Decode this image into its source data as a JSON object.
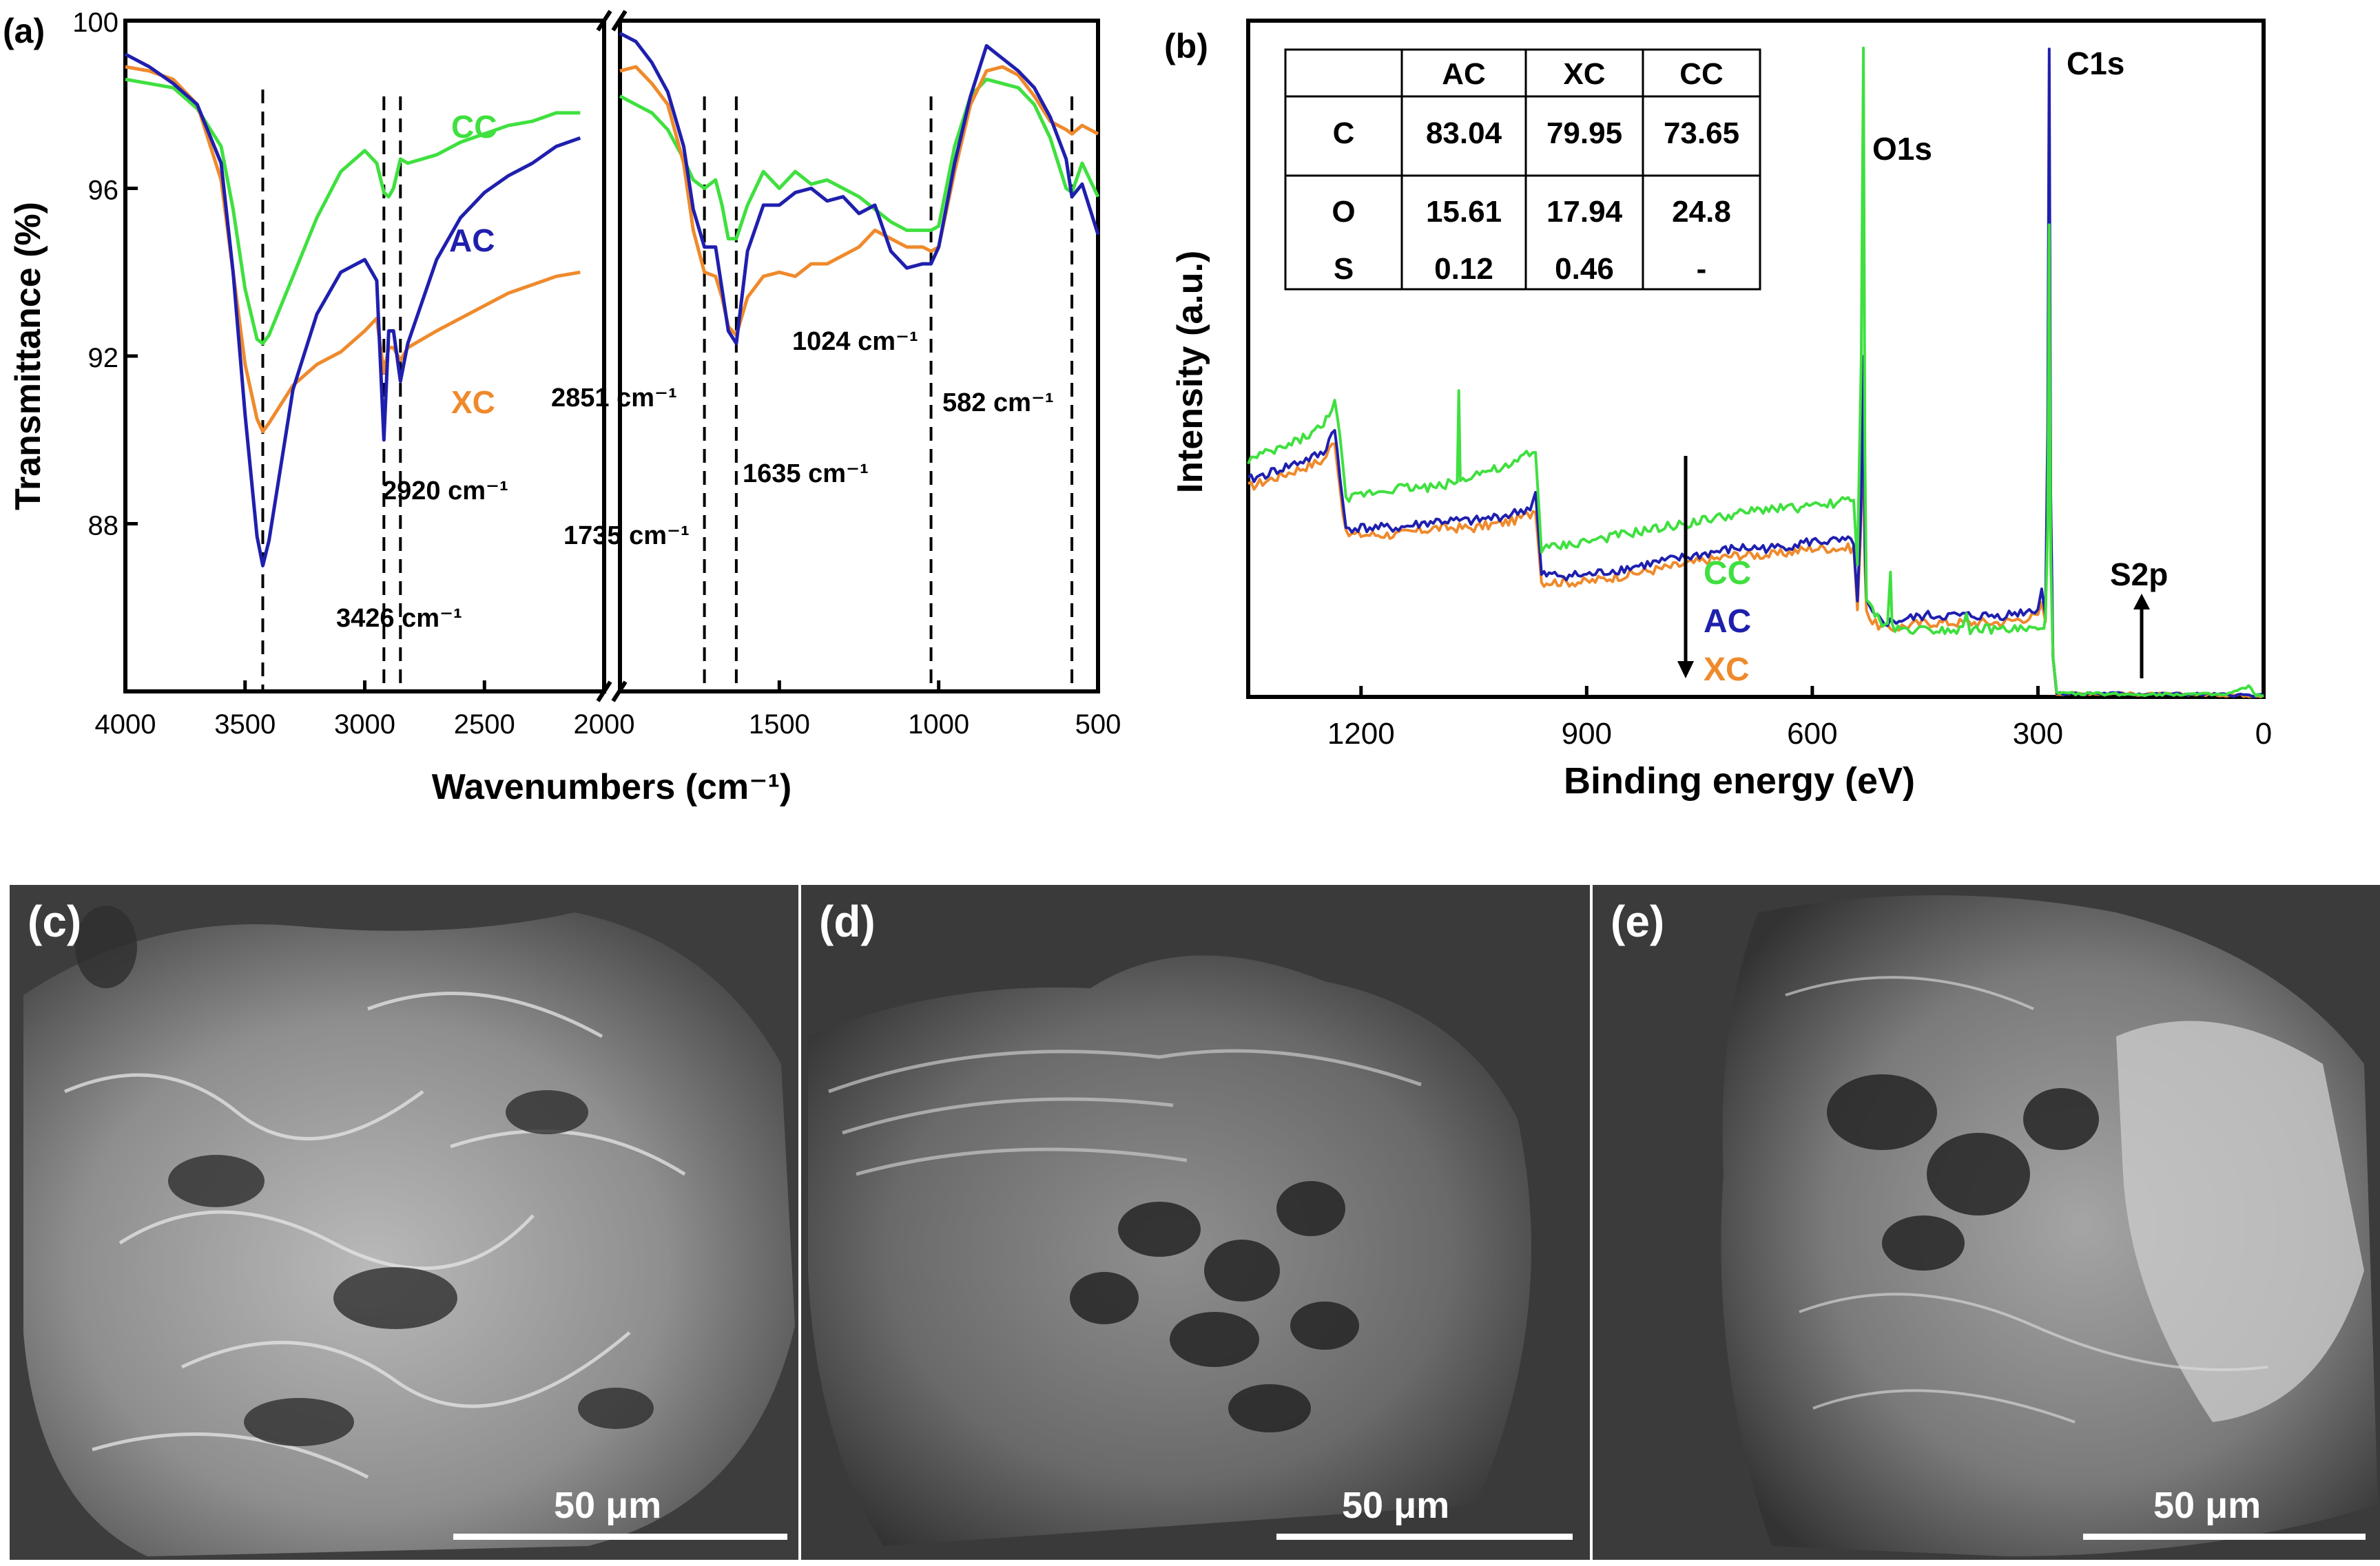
{
  "colors": {
    "AC": "#1f1fae",
    "XC": "#ef8a2c",
    "CC": "#3fe03f",
    "axis": "#000000"
  },
  "chart_data": [
    {
      "panel": "(a)",
      "type": "line",
      "xlabel": "Wavenumbers (cm⁻¹)",
      "ylabel": "Transmittance (%)",
      "ylim": [
        84,
        100
      ],
      "yticks": [
        "88",
        "92",
        "96",
        "100"
      ],
      "xbreak": true,
      "segment1": {
        "xlim": [
          4000,
          2000
        ],
        "xticks": [
          "4000",
          "3500",
          "3000",
          "2500",
          "2000"
        ]
      },
      "segment2": {
        "xlim": [
          2000,
          500
        ],
        "xticks": [
          "1500",
          "1000",
          "500"
        ]
      },
      "series": [
        {
          "name": "AC",
          "label": "AC",
          "seg1": {
            "x": [
              4000,
              3900,
              3800,
              3700,
              3600,
              3550,
              3500,
              3450,
              3426,
              3400,
              3300,
              3200,
              3100,
              3000,
              2950,
              2920,
              2900,
              2880,
              2851,
              2820,
              2700,
              2600,
              2500,
              2400,
              2300,
              2200,
              2100
            ],
            "y": [
              99.2,
              98.9,
              98.5,
              98.0,
              96.6,
              94.0,
              90.6,
              87.7,
              87.0,
              87.6,
              91.2,
              93.0,
              94.0,
              94.3,
              93.8,
              90.0,
              92.6,
              92.6,
              91.4,
              92.3,
              94.3,
              95.3,
              95.9,
              96.3,
              96.6,
              97.0,
              97.2
            ]
          },
          "seg2": {
            "x": [
              2000,
              1950,
              1900,
              1850,
              1800,
              1770,
              1735,
              1700,
              1680,
              1660,
              1635,
              1600,
              1550,
              1500,
              1450,
              1400,
              1350,
              1300,
              1250,
              1200,
              1150,
              1100,
              1050,
              1024,
              1000,
              950,
              900,
              850,
              800,
              750,
              700,
              650,
              600,
              582,
              550,
              500
            ],
            "y": [
              99.7,
              99.5,
              99.0,
              98.3,
              97.0,
              95.5,
              94.6,
              94.6,
              93.6,
              92.6,
              92.3,
              94.5,
              95.6,
              95.6,
              95.9,
              96.0,
              95.7,
              95.8,
              95.4,
              95.6,
              94.5,
              94.1,
              94.2,
              94.2,
              94.6,
              96.6,
              98.2,
              99.4,
              99.1,
              98.8,
              98.4,
              97.7,
              96.7,
              95.8,
              96.1,
              94.9
            ]
          }
        },
        {
          "name": "XC",
          "label": "XC",
          "seg1": {
            "x": [
              4000,
              3900,
              3800,
              3700,
              3600,
              3550,
              3500,
              3450,
              3426,
              3400,
              3300,
              3200,
              3100,
              3000,
              2950,
              2920,
              2900,
              2880,
              2851,
              2820,
              2700,
              2600,
              2500,
              2400,
              2300,
              2200,
              2100
            ],
            "y": [
              98.9,
              98.8,
              98.6,
              98.0,
              96.2,
              94.0,
              91.8,
              90.5,
              90.2,
              90.4,
              91.3,
              91.8,
              92.1,
              92.6,
              92.9,
              91.6,
              92.2,
              92.2,
              91.9,
              92.2,
              92.6,
              92.9,
              93.2,
              93.5,
              93.7,
              93.9,
              94.0
            ]
          },
          "seg2": {
            "x": [
              2000,
              1950,
              1900,
              1850,
              1800,
              1770,
              1735,
              1700,
              1680,
              1660,
              1635,
              1600,
              1550,
              1500,
              1450,
              1400,
              1350,
              1300,
              1250,
              1200,
              1150,
              1100,
              1050,
              1024,
              1000,
              950,
              900,
              850,
              800,
              750,
              700,
              650,
              600,
              582,
              550,
              500
            ],
            "y": [
              98.8,
              98.9,
              98.5,
              98.0,
              96.6,
              95.0,
              94.0,
              93.9,
              93.4,
              92.7,
              92.5,
              93.4,
              93.9,
              94.0,
              93.9,
              94.2,
              94.2,
              94.4,
              94.6,
              95.0,
              94.8,
              94.6,
              94.6,
              94.5,
              94.6,
              96.4,
              98.0,
              98.8,
              98.9,
              98.7,
              98.2,
              97.6,
              97.4,
              97.3,
              97.5,
              97.3
            ]
          }
        },
        {
          "name": "CC",
          "label": "CC",
          "seg1": {
            "x": [
              4000,
              3900,
              3800,
              3700,
              3600,
              3550,
              3500,
              3450,
              3426,
              3400,
              3300,
              3200,
              3100,
              3000,
              2950,
              2920,
              2900,
              2880,
              2851,
              2820,
              2700,
              2600,
              2500,
              2400,
              2300,
              2200,
              2100
            ],
            "y": [
              98.6,
              98.5,
              98.4,
              97.9,
              97.0,
              95.5,
              93.6,
              92.4,
              92.3,
              92.5,
              93.9,
              95.3,
              96.4,
              96.9,
              96.6,
              95.9,
              95.8,
              96.0,
              96.7,
              96.6,
              96.8,
              97.1,
              97.3,
              97.5,
              97.6,
              97.8,
              97.8
            ]
          },
          "seg2": {
            "x": [
              2000,
              1950,
              1900,
              1850,
              1800,
              1770,
              1735,
              1700,
              1680,
              1660,
              1635,
              1600,
              1550,
              1500,
              1450,
              1400,
              1350,
              1300,
              1250,
              1200,
              1150,
              1100,
              1050,
              1024,
              1000,
              950,
              900,
              850,
              800,
              750,
              700,
              650,
              600,
              582,
              550,
              500
            ],
            "y": [
              98.2,
              98.0,
              97.8,
              97.4,
              96.7,
              96.2,
              96.0,
              96.2,
              95.6,
              94.8,
              94.8,
              95.6,
              96.4,
              96.0,
              96.4,
              96.1,
              96.2,
              96.0,
              95.8,
              95.5,
              95.2,
              95.0,
              95.0,
              95.0,
              95.1,
              97.0,
              98.2,
              98.6,
              98.5,
              98.4,
              98.0,
              97.2,
              96.0,
              95.9,
              96.6,
              95.8
            ]
          }
        }
      ],
      "annotations": [
        {
          "label": "3426 cm⁻¹",
          "x": 3426
        },
        {
          "label": "2920 cm⁻¹",
          "x": 2920
        },
        {
          "label": "2851 cm⁻¹",
          "x": 2851
        },
        {
          "label": "1735 cm⁻¹",
          "x": 1735
        },
        {
          "label": "1635 cm⁻¹",
          "x": 1635
        },
        {
          "label": "1024 cm⁻¹",
          "x": 1024
        },
        {
          "label": "582 cm⁻¹",
          "x": 582
        }
      ]
    },
    {
      "panel": "(b)",
      "type": "line",
      "xlabel": "Binding energy (eV)",
      "ylabel": "Intensity (a.u.)",
      "xlim": [
        1350,
        0
      ],
      "xticks": [
        "1200",
        "900",
        "600",
        "300",
        "0"
      ],
      "yticks": [],
      "peaks": [
        "O1s",
        "C1s",
        "S2p"
      ],
      "legend_order": [
        "CC",
        "AC",
        "XC"
      ],
      "series": [
        {
          "name": "CC",
          "x": [
            1350,
            1300,
            1250,
            1235,
            1228,
            1220,
            1200,
            1150,
            1100,
            1072,
            1070,
            1068,
            1050,
            1000,
            980,
            968,
            960,
            950,
            900,
            850,
            800,
            750,
            700,
            650,
            600,
            560,
            545,
            540,
            535,
            532,
            530,
            528,
            520,
            510,
            500,
            496,
            494,
            490,
            470,
            450,
            420,
            400,
            395,
            390,
            350,
            300,
            292,
            290,
            287,
            285,
            283,
            280,
            275,
            250,
            230,
            200,
            150,
            100,
            50,
            20,
            10,
            0
          ],
          "y": [
            0.35,
            0.37,
            0.4,
            0.44,
            0.38,
            0.29,
            0.3,
            0.31,
            0.31,
            0.32,
            0.45,
            0.32,
            0.33,
            0.34,
            0.36,
            0.36,
            0.22,
            0.22,
            0.23,
            0.24,
            0.25,
            0.26,
            0.27,
            0.28,
            0.28,
            0.29,
            0.29,
            0.2,
            0.5,
            0.96,
            0.35,
            0.14,
            0.13,
            0.11,
            0.11,
            0.18,
            0.11,
            0.1,
            0.1,
            0.1,
            0.1,
            0.1,
            0.13,
            0.1,
            0.1,
            0.1,
            0.1,
            0.12,
            0.25,
            0.7,
            0.2,
            0.06,
            0.005,
            0.005,
            0.005,
            0.004,
            0.004,
            0.004,
            0.003,
            0.015,
            0.003,
            0.002
          ]
        },
        {
          "name": "AC",
          "x": [
            1350,
            1300,
            1250,
            1235,
            1228,
            1220,
            1200,
            1150,
            1100,
            1050,
            1000,
            975,
            968,
            960,
            950,
            900,
            850,
            800,
            750,
            700,
            650,
            600,
            560,
            545,
            540,
            535,
            532,
            530,
            528,
            520,
            500,
            450,
            400,
            350,
            300,
            295,
            290,
            287,
            285,
            283,
            280,
            275,
            250,
            200,
            150,
            100,
            50,
            0
          ],
          "y": [
            0.32,
            0.34,
            0.36,
            0.4,
            0.32,
            0.25,
            0.25,
            0.25,
            0.26,
            0.26,
            0.27,
            0.28,
            0.3,
            0.18,
            0.18,
            0.18,
            0.19,
            0.2,
            0.21,
            0.22,
            0.22,
            0.23,
            0.23,
            0.23,
            0.14,
            0.28,
            0.5,
            0.22,
            0.14,
            0.12,
            0.11,
            0.12,
            0.12,
            0.12,
            0.13,
            0.16,
            0.12,
            0.4,
            0.96,
            0.3,
            0.06,
            0.005,
            0.005,
            0.005,
            0.004,
            0.004,
            0.003,
            0.002
          ]
        },
        {
          "name": "XC",
          "x": [
            1350,
            1300,
            1250,
            1235,
            1228,
            1220,
            1200,
            1150,
            1100,
            1050,
            1000,
            975,
            968,
            960,
            950,
            900,
            850,
            800,
            750,
            700,
            650,
            600,
            560,
            545,
            540,
            535,
            532,
            530,
            528,
            520,
            500,
            450,
            400,
            350,
            300,
            295,
            290,
            287,
            285,
            283,
            280,
            275,
            250,
            200,
            150,
            100,
            50,
            0
          ],
          "y": [
            0.31,
            0.33,
            0.35,
            0.38,
            0.31,
            0.24,
            0.24,
            0.24,
            0.25,
            0.25,
            0.26,
            0.27,
            0.28,
            0.17,
            0.17,
            0.17,
            0.18,
            0.19,
            0.2,
            0.21,
            0.21,
            0.22,
            0.22,
            0.22,
            0.13,
            0.26,
            0.45,
            0.2,
            0.13,
            0.11,
            0.1,
            0.11,
            0.11,
            0.11,
            0.12,
            0.14,
            0.11,
            0.35,
            0.86,
            0.28,
            0.06,
            0.005,
            0.005,
            0.005,
            0.004,
            0.004,
            0.003,
            0.002
          ]
        }
      ],
      "table": {
        "columns": [
          "",
          "AC",
          "XC",
          "CC"
        ],
        "rows": [
          [
            "C",
            "83.04",
            "79.95",
            "73.65"
          ],
          [
            "O",
            "15.61",
            "17.94",
            "24.8"
          ],
          [
            "S",
            "0.12",
            "0.46",
            "-"
          ]
        ]
      }
    }
  ],
  "sem_images": [
    {
      "label": "(c)",
      "scale": "50 μm"
    },
    {
      "label": "(d)",
      "scale": "50 μm"
    },
    {
      "label": "(e)",
      "scale": "50 μm"
    }
  ]
}
